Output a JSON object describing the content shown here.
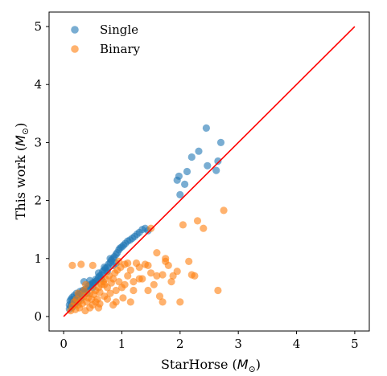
{
  "chart_data": {
    "type": "scatter",
    "title": "",
    "xlabel": "StarHorse ($M_\\odot$)",
    "ylabel": "This work ($M_\\odot$)",
    "xlabel_text": "StarHorse (",
    "xlabel_sym": "M",
    "ylabel_text": "This work (",
    "ylabel_sym": "M",
    "xlim": [
      -0.25,
      5.25
    ],
    "ylim": [
      -0.25,
      5.25
    ],
    "xticks": [
      0,
      1,
      2,
      3,
      4,
      5
    ],
    "yticks": [
      0,
      1,
      2,
      3,
      4,
      5
    ],
    "grid": false,
    "legend_position": "top-left",
    "reference_line": {
      "x": [
        0,
        5
      ],
      "y": [
        0,
        5
      ],
      "color": "#ff0000"
    },
    "series": [
      {
        "name": "Single",
        "color": "#1f77b4",
        "points": [
          [
            0.1,
            0.13
          ],
          [
            0.1,
            0.2
          ],
          [
            0.11,
            0.27
          ],
          [
            0.12,
            0.17
          ],
          [
            0.13,
            0.3
          ],
          [
            0.14,
            0.22
          ],
          [
            0.15,
            0.33
          ],
          [
            0.16,
            0.25
          ],
          [
            0.18,
            0.36
          ],
          [
            0.2,
            0.3
          ],
          [
            0.22,
            0.4
          ],
          [
            0.24,
            0.34
          ],
          [
            0.26,
            0.38
          ],
          [
            0.28,
            0.43
          ],
          [
            0.3,
            0.4
          ],
          [
            0.33,
            0.45
          ],
          [
            0.35,
            0.44
          ],
          [
            0.38,
            0.48
          ],
          [
            0.4,
            0.47
          ],
          [
            0.42,
            0.52
          ],
          [
            0.45,
            0.55
          ],
          [
            0.47,
            0.54
          ],
          [
            0.5,
            0.58
          ],
          [
            0.52,
            0.58
          ],
          [
            0.55,
            0.64
          ],
          [
            0.57,
            0.62
          ],
          [
            0.6,
            0.68
          ],
          [
            0.62,
            0.7
          ],
          [
            0.65,
            0.72
          ],
          [
            0.67,
            0.78
          ],
          [
            0.7,
            0.8
          ],
          [
            0.72,
            0.83
          ],
          [
            0.75,
            0.85
          ],
          [
            0.77,
            0.9
          ],
          [
            0.8,
            0.93
          ],
          [
            0.82,
            0.97
          ],
          [
            0.85,
            1.0
          ],
          [
            0.87,
            1.03
          ],
          [
            0.9,
            1.07
          ],
          [
            0.92,
            1.1
          ],
          [
            0.95,
            1.15
          ],
          [
            0.97,
            1.18
          ],
          [
            1.0,
            1.2
          ],
          [
            1.03,
            1.23
          ],
          [
            1.06,
            1.26
          ],
          [
            1.1,
            1.3
          ],
          [
            1.14,
            1.32
          ],
          [
            1.18,
            1.35
          ],
          [
            1.22,
            1.38
          ],
          [
            1.26,
            1.42
          ],
          [
            1.3,
            1.45
          ],
          [
            1.35,
            1.5
          ],
          [
            1.4,
            1.52
          ],
          [
            1.45,
            1.48
          ],
          [
            0.35,
            0.6
          ],
          [
            0.45,
            0.62
          ],
          [
            0.55,
            0.6
          ],
          [
            0.6,
            0.75
          ],
          [
            0.7,
            0.85
          ],
          [
            0.8,
            1.0
          ],
          [
            0.85,
            0.88
          ],
          [
            0.9,
            0.92
          ],
          [
            0.75,
            0.78
          ],
          [
            0.65,
            0.66
          ],
          [
            0.5,
            0.5
          ],
          [
            0.4,
            0.4
          ],
          [
            0.3,
            0.32
          ],
          [
            0.25,
            0.26
          ],
          [
            0.2,
            0.22
          ],
          [
            0.15,
            0.16
          ],
          [
            1.95,
            2.35
          ],
          [
            1.98,
            2.42
          ],
          [
            2.0,
            2.1
          ],
          [
            2.08,
            2.28
          ],
          [
            2.12,
            2.5
          ],
          [
            2.2,
            2.75
          ],
          [
            2.32,
            2.85
          ],
          [
            2.45,
            3.25
          ],
          [
            2.47,
            2.6
          ],
          [
            2.62,
            2.52
          ],
          [
            2.65,
            2.68
          ],
          [
            2.7,
            3.0
          ]
        ]
      },
      {
        "name": "Binary",
        "color": "#ff7f0e",
        "points": [
          [
            0.12,
            0.1
          ],
          [
            0.15,
            0.18
          ],
          [
            0.18,
            0.25
          ],
          [
            0.2,
            0.12
          ],
          [
            0.22,
            0.3
          ],
          [
            0.25,
            0.2
          ],
          [
            0.27,
            0.15
          ],
          [
            0.3,
            0.28
          ],
          [
            0.32,
            0.22
          ],
          [
            0.35,
            0.35
          ],
          [
            0.37,
            0.1
          ],
          [
            0.4,
            0.25
          ],
          [
            0.42,
            0.32
          ],
          [
            0.45,
            0.4
          ],
          [
            0.48,
            0.3
          ],
          [
            0.5,
            0.2
          ],
          [
            0.52,
            0.38
          ],
          [
            0.55,
            0.45
          ],
          [
            0.58,
            0.3
          ],
          [
            0.6,
            0.5
          ],
          [
            0.62,
            0.42
          ],
          [
            0.65,
            0.55
          ],
          [
            0.68,
            0.6
          ],
          [
            0.7,
            0.35
          ],
          [
            0.72,
            0.65
          ],
          [
            0.75,
            0.5
          ],
          [
            0.78,
            0.7
          ],
          [
            0.8,
            0.4
          ],
          [
            0.82,
            0.58
          ],
          [
            0.85,
            0.65
          ],
          [
            0.88,
            0.75
          ],
          [
            0.9,
            0.45
          ],
          [
            0.92,
            0.8
          ],
          [
            0.95,
            0.6
          ],
          [
            0.98,
            0.85
          ],
          [
            1.0,
            0.5
          ],
          [
            1.05,
            0.9
          ],
          [
            1.1,
            0.7
          ],
          [
            1.15,
            0.8
          ],
          [
            1.2,
            0.6
          ],
          [
            1.25,
            0.92
          ],
          [
            1.3,
            0.85
          ],
          [
            1.35,
            0.65
          ],
          [
            1.4,
            0.9
          ],
          [
            1.45,
            0.45
          ],
          [
            1.5,
            0.75
          ],
          [
            1.55,
            0.55
          ],
          [
            1.6,
            0.7
          ],
          [
            1.65,
            0.35
          ],
          [
            1.7,
            0.72
          ],
          [
            1.75,
            0.95
          ],
          [
            1.8,
            0.88
          ],
          [
            1.85,
            0.6
          ],
          [
            1.95,
            0.78
          ],
          [
            2.0,
            0.25
          ],
          [
            2.05,
            1.58
          ],
          [
            2.15,
            0.95
          ],
          [
            2.2,
            0.72
          ],
          [
            2.3,
            1.65
          ],
          [
            2.4,
            1.52
          ],
          [
            2.65,
            0.45
          ],
          [
            2.75,
            1.83
          ],
          [
            0.15,
            0.88
          ],
          [
            0.3,
            0.9
          ],
          [
            0.5,
            0.88
          ],
          [
            0.7,
            0.55
          ],
          [
            1.02,
            0.32
          ],
          [
            0.62,
            0.22
          ],
          [
            0.45,
            0.15
          ],
          [
            0.85,
            0.2
          ],
          [
            1.15,
            0.25
          ],
          [
            1.7,
            0.25
          ],
          [
            1.3,
            0.65
          ],
          [
            0.95,
            0.95
          ],
          [
            1.1,
            0.92
          ],
          [
            1.6,
            1.1
          ],
          [
            1.75,
            1.0
          ],
          [
            1.88,
            0.7
          ],
          [
            2.25,
            0.7
          ],
          [
            1.5,
            1.52
          ],
          [
            0.25,
            0.4
          ],
          [
            0.35,
            0.45
          ],
          [
            0.55,
            0.25
          ],
          [
            0.75,
            0.3
          ],
          [
            0.9,
            0.25
          ],
          [
            1.05,
            0.55
          ],
          [
            1.2,
            0.45
          ],
          [
            1.45,
            0.88
          ],
          [
            0.38,
            0.55
          ],
          [
            0.6,
            0.15
          ]
        ]
      }
    ]
  }
}
